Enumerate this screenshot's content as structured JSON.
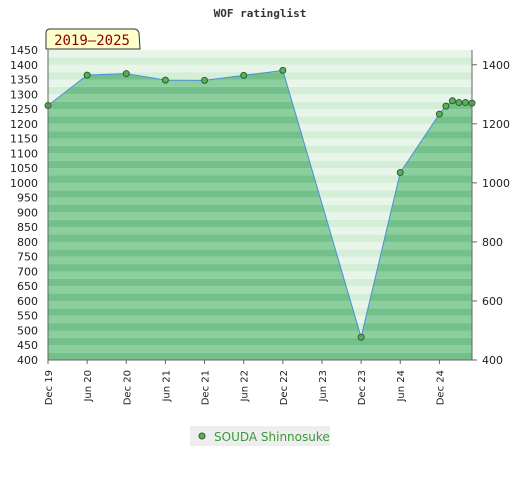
{
  "chart_data": {
    "type": "line",
    "title": "WOF ratinglist",
    "period_badge": "2019–2025",
    "x_ticks": [
      "Dec 19",
      "Jun 20",
      "Dec 20",
      "Jun 21",
      "Dec 21",
      "Jun 22",
      "Dec 22",
      "Jun 23",
      "Dec 23",
      "Jun 24",
      "Dec 24"
    ],
    "y_left": {
      "min": 400,
      "max": 1450,
      "step": 50,
      "ticks": [
        "400",
        "450",
        "500",
        "550",
        "600",
        "650",
        "700",
        "750",
        "800",
        "850",
        "900",
        "950",
        "1000",
        "1050",
        "1100",
        "1150",
        "1200",
        "1250",
        "1300",
        "1350",
        "1400",
        "1450"
      ]
    },
    "y_right": {
      "ticks": [
        "400",
        "600",
        "800",
        "1000",
        "1200",
        "1400"
      ]
    },
    "x_range": [
      0,
      65
    ],
    "series": [
      {
        "name": "SOUDA Shinnosuke",
        "points": [
          {
            "x": 0,
            "y": 1262
          },
          {
            "x": 6,
            "y": 1365
          },
          {
            "x": 12,
            "y": 1370
          },
          {
            "x": 18,
            "y": 1348
          },
          {
            "x": 24,
            "y": 1347
          },
          {
            "x": 30,
            "y": 1364
          },
          {
            "x": 36,
            "y": 1381
          },
          {
            "x": 48,
            "y": 477
          },
          {
            "x": 54,
            "y": 1035
          },
          {
            "x": 60,
            "y": 1233
          },
          {
            "x": 61,
            "y": 1260
          },
          {
            "x": 62,
            "y": 1278
          },
          {
            "x": 63,
            "y": 1272
          },
          {
            "x": 64,
            "y": 1272
          },
          {
            "x": 65,
            "y": 1270
          }
        ]
      }
    ],
    "legend_position": "bottom-center",
    "grid": true,
    "colors": {
      "line": "#4a8fd8",
      "marker": "#5cae5c",
      "marker_edge": "#2f5f2f",
      "fill": "#7ec48e"
    }
  }
}
